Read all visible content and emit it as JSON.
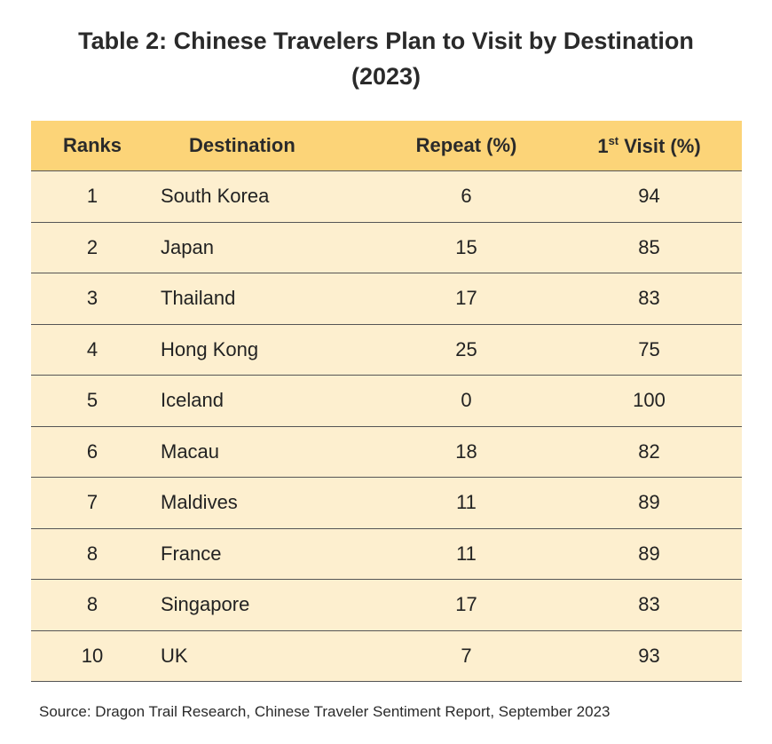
{
  "title": {
    "line1": "Table 2: Chinese Travelers Plan to Visit by Destination",
    "line2": "(2023)"
  },
  "table": {
    "headers": {
      "rank": "Ranks",
      "destination": "Destination",
      "repeat": "Repeat (%)",
      "first_visit_prefix": "1",
      "first_visit_sup": "st",
      "first_visit_suffix": " Visit (%)"
    },
    "rows": [
      {
        "rank": "1",
        "destination": "South Korea",
        "repeat": "6",
        "first_visit": "94"
      },
      {
        "rank": "2",
        "destination": "Japan",
        "repeat": "15",
        "first_visit": "85"
      },
      {
        "rank": "3",
        "destination": "Thailand",
        "repeat": "17",
        "first_visit": "83"
      },
      {
        "rank": "4",
        "destination": "Hong Kong",
        "repeat": "25",
        "first_visit": "75"
      },
      {
        "rank": "5",
        "destination": "Iceland",
        "repeat": "0",
        "first_visit": "100"
      },
      {
        "rank": "6",
        "destination": "Macau",
        "repeat": "18",
        "first_visit": "82"
      },
      {
        "rank": "7",
        "destination": "Maldives",
        "repeat": "11",
        "first_visit": "89"
      },
      {
        "rank": "8",
        "destination": "France",
        "repeat": "11",
        "first_visit": "89"
      },
      {
        "rank": "8",
        "destination": "Singapore",
        "repeat": "17",
        "first_visit": "83"
      },
      {
        "rank": "10",
        "destination": "UK",
        "repeat": "7",
        "first_visit": "93"
      }
    ]
  },
  "source": "Source: Dragon Trail Research, Chinese Traveler Sentiment Report, September 2023",
  "colors": {
    "header_bg": "#fcd478",
    "row_bg": "#fdefcf"
  }
}
